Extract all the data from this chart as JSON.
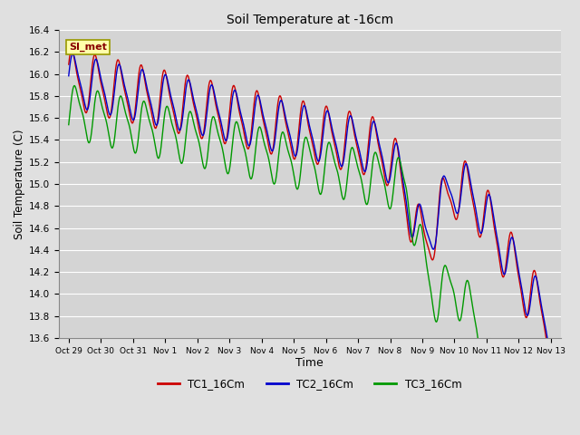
{
  "title": "Soil Temperature at -16cm",
  "xlabel": "Time",
  "ylabel": "Soil Temperature (C)",
  "ylim": [
    13.6,
    16.4
  ],
  "background_color": "#e0e0e0",
  "plot_bg_color": "#d4d4d4",
  "grid_color": "#ffffff",
  "legend_labels": [
    "TC1_16Cm",
    "TC2_16Cm",
    "TC3_16Cm"
  ],
  "legend_colors": [
    "#cc0000",
    "#0000cc",
    "#009900"
  ],
  "watermark_text": "SI_met",
  "watermark_bg": "#ffffaa",
  "watermark_border": "#999900",
  "yticks": [
    13.6,
    13.8,
    14.0,
    14.2,
    14.4,
    14.6,
    14.8,
    15.0,
    15.2,
    15.4,
    15.6,
    15.8,
    16.0,
    16.2,
    16.4
  ],
  "tick_labels": [
    "Oct 29",
    "Oct 30",
    "Oct 31",
    "Nov 1",
    "Nov 2",
    "Nov 3",
    "Nov 4",
    "Nov 5",
    "Nov 6",
    "Nov 7",
    "Nov 8",
    "Nov 9",
    "Nov 10",
    "Nov 11",
    "Nov 12",
    "Nov 13"
  ]
}
